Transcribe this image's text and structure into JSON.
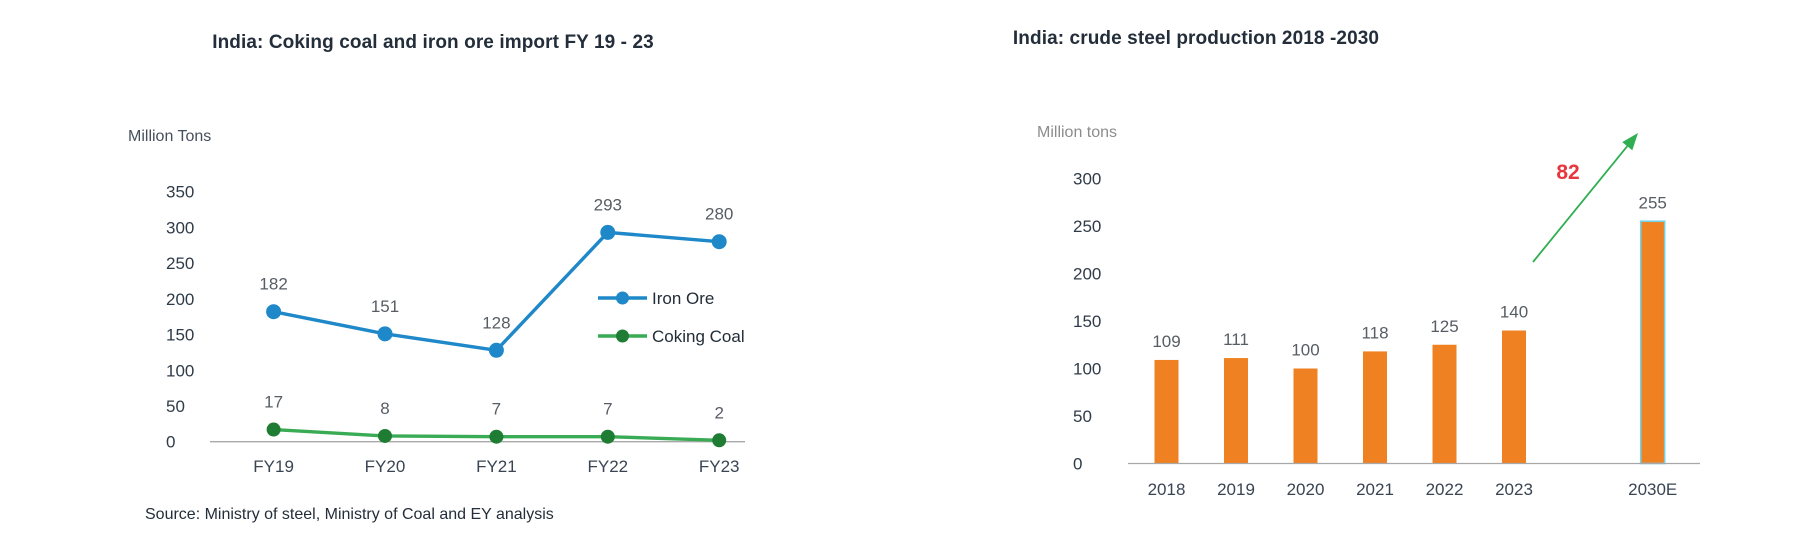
{
  "page": {
    "background_color": "#ffffff"
  },
  "chart_data": [
    {
      "type": "line",
      "title": "India: Coking coal and iron ore import FY 19 - 23",
      "unit_label": "Million Tons",
      "categories": [
        "FY19",
        "FY20",
        "FY21",
        "FY22",
        "FY23"
      ],
      "series": [
        {
          "name": "Iron Ore",
          "line_color": "#1e88c9",
          "marker_color": "#1e88c9",
          "values": [
            182,
            151,
            128,
            293,
            280
          ]
        },
        {
          "name": "Coking Coal",
          "line_color": "#3aab55",
          "marker_color": "#1e7c33",
          "values": [
            17,
            8,
            7,
            7,
            2
          ]
        }
      ],
      "ylim": [
        0,
        350
      ],
      "ytick_step": 50,
      "grid": false,
      "legend_position": "right-middle",
      "axis_color": "#a8a8a8",
      "source": "Source: Ministry of steel, Ministry of Coal and EY analysis"
    },
    {
      "type": "bar",
      "title": "India: crude steel production 2018 -2030",
      "unit_label": "Million tons",
      "categories": [
        "2018",
        "2019",
        "2020",
        "2021",
        "2022",
        "2023",
        "2030E"
      ],
      "values": [
        109,
        111,
        100,
        118,
        125,
        140,
        255
      ],
      "bar_color": "#ef8122",
      "highlight_last_bar_border": "#74d2e7",
      "ylim": [
        0,
        300
      ],
      "ytick_step": 50,
      "grid": false,
      "axis_color": "#a8a8a8",
      "annotation": {
        "text": "82",
        "color": "#e8363d",
        "arrow_color": "#2fae52"
      }
    }
  ]
}
